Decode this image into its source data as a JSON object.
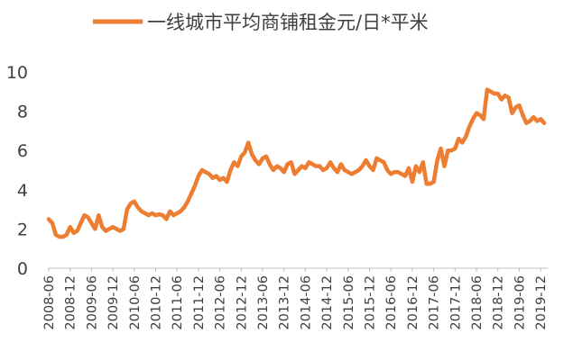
{
  "chart_data": {
    "type": "line",
    "title": "",
    "xlabel": "",
    "ylabel": "",
    "ylim": [
      0,
      10
    ],
    "yticks": [
      0,
      2,
      4,
      6,
      8,
      10
    ],
    "grid": false,
    "legend_position": "top",
    "x_tick_labels": [
      "2008-06",
      "2008-12",
      "2009-06",
      "2009-12",
      "2010-06",
      "2010-12",
      "2011-06",
      "2011-12",
      "2012-06",
      "2012-12",
      "2013-06",
      "2013-12",
      "2014-06",
      "2014-12",
      "2015-06",
      "2015-12",
      "2016-06",
      "2016-12",
      "2017-06",
      "2017-12",
      "2018-06",
      "2018-12",
      "2019-06",
      "2019-12"
    ],
    "series": [
      {
        "name": "一线城市平均商铺租金元/日*平米",
        "color": "#ED7D31",
        "x": [
          "2008-06",
          "2008-07",
          "2008-08",
          "2008-09",
          "2008-10",
          "2008-11",
          "2008-12",
          "2009-01",
          "2009-02",
          "2009-03",
          "2009-04",
          "2009-05",
          "2009-06",
          "2009-07",
          "2009-08",
          "2009-09",
          "2009-10",
          "2009-11",
          "2009-12",
          "2010-01",
          "2010-02",
          "2010-03",
          "2010-04",
          "2010-05",
          "2010-06",
          "2010-07",
          "2010-08",
          "2010-09",
          "2010-10",
          "2010-11",
          "2010-12",
          "2011-01",
          "2011-02",
          "2011-03",
          "2011-04",
          "2011-05",
          "2011-06",
          "2011-07",
          "2011-08",
          "2011-09",
          "2011-10",
          "2011-11",
          "2011-12",
          "2012-01",
          "2012-02",
          "2012-03",
          "2012-04",
          "2012-05",
          "2012-06",
          "2012-07",
          "2012-08",
          "2012-09",
          "2012-10",
          "2012-11",
          "2012-12",
          "2013-01",
          "2013-02",
          "2013-03",
          "2013-04",
          "2013-05",
          "2013-06",
          "2013-07",
          "2013-08",
          "2013-09",
          "2013-10",
          "2013-11",
          "2013-12",
          "2014-01",
          "2014-02",
          "2014-03",
          "2014-04",
          "2014-05",
          "2014-06",
          "2014-07",
          "2014-08",
          "2014-09",
          "2014-10",
          "2014-11",
          "2014-12",
          "2015-01",
          "2015-02",
          "2015-03",
          "2015-04",
          "2015-05",
          "2015-06",
          "2015-07",
          "2015-08",
          "2015-09",
          "2015-10",
          "2015-11",
          "2015-12",
          "2016-01",
          "2016-02",
          "2016-03",
          "2016-04",
          "2016-05",
          "2016-06",
          "2016-07",
          "2016-08",
          "2016-09",
          "2016-10",
          "2016-11",
          "2016-12",
          "2017-01",
          "2017-02",
          "2017-03",
          "2017-04",
          "2017-05",
          "2017-06",
          "2017-07",
          "2017-08",
          "2017-09",
          "2017-10",
          "2017-11",
          "2017-12",
          "2018-01",
          "2018-02",
          "2018-03",
          "2018-04",
          "2018-05",
          "2018-06",
          "2018-07",
          "2018-08",
          "2018-09",
          "2018-10",
          "2018-11",
          "2018-12",
          "2019-01",
          "2019-02",
          "2019-03",
          "2019-04",
          "2019-05",
          "2019-06",
          "2019-07",
          "2019-08",
          "2019-09",
          "2019-10",
          "2019-11",
          "2019-12",
          "2020-01"
        ],
        "values": [
          2.5,
          2.3,
          1.7,
          1.6,
          1.6,
          1.7,
          2.1,
          1.8,
          1.9,
          2.3,
          2.7,
          2.6,
          2.3,
          2.0,
          2.7,
          2.1,
          1.9,
          2.0,
          2.1,
          2.0,
          1.9,
          2.0,
          3.0,
          3.3,
          3.4,
          3.1,
          2.9,
          2.8,
          2.7,
          2.8,
          2.7,
          2.75,
          2.7,
          2.5,
          2.9,
          2.7,
          2.8,
          2.9,
          3.1,
          3.4,
          3.8,
          4.2,
          4.7,
          5.0,
          4.9,
          4.8,
          4.6,
          4.7,
          4.5,
          4.6,
          4.4,
          5.0,
          5.4,
          5.2,
          5.7,
          5.9,
          6.4,
          5.8,
          5.5,
          5.3,
          5.6,
          5.7,
          5.3,
          5.0,
          5.2,
          5.1,
          4.9,
          5.3,
          5.4,
          4.8,
          5.0,
          5.2,
          5.1,
          5.4,
          5.3,
          5.2,
          5.2,
          5.0,
          5.1,
          5.4,
          5.1,
          4.9,
          5.3,
          5.0,
          4.9,
          4.8,
          4.9,
          5.0,
          5.2,
          5.5,
          5.2,
          5.0,
          5.6,
          5.5,
          5.4,
          5.0,
          4.8,
          4.9,
          4.9,
          4.8,
          4.7,
          5.1,
          4.4,
          5.2,
          4.9,
          5.4,
          4.3,
          4.3,
          4.4,
          5.5,
          6.1,
          5.2,
          6.0,
          6.0,
          6.1,
          6.6,
          6.4,
          6.7,
          7.2,
          7.6,
          7.9,
          7.8,
          7.6,
          9.1,
          9.0,
          8.9,
          8.9,
          8.6,
          8.8,
          8.7,
          7.9,
          8.2,
          8.3,
          7.8,
          7.4,
          7.5,
          7.7,
          7.5,
          7.6,
          7.4
        ]
      }
    ]
  }
}
